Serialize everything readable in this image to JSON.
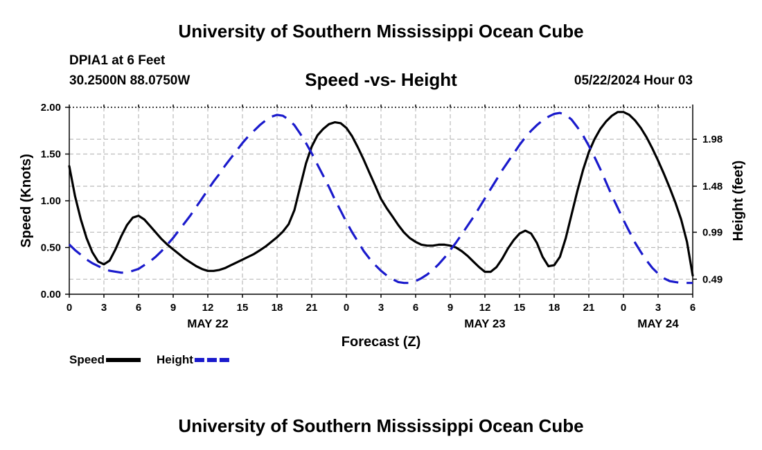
{
  "header": {
    "title": "University of Southern Mississippi Ocean Cube",
    "station": "DPIA1 at 6 Feet",
    "coords": "30.2500N  88.0750W",
    "subtitle": "Speed -vs- Height",
    "datetime": "05/22/2024 Hour 03"
  },
  "footer": {
    "title": "University of Southern Mississippi Ocean Cube"
  },
  "chart_data": {
    "type": "line",
    "title": "Speed -vs- Height",
    "xlabel": "Forecast (Z)",
    "ylabel": "Speed (Knots)",
    "y2label": "Height (feet)",
    "xlim": [
      0,
      54
    ],
    "ylim": [
      0,
      2.0
    ],
    "y2lim": [
      0.33,
      2.32
    ],
    "x_ticks": [
      0,
      3,
      6,
      9,
      12,
      15,
      18,
      21,
      24,
      27,
      30,
      33,
      36,
      39,
      42,
      45,
      48,
      51,
      54
    ],
    "x_tick_labels": [
      "0",
      "3",
      "6",
      "9",
      "12",
      "15",
      "18",
      "21",
      "0",
      "3",
      "6",
      "9",
      "12",
      "15",
      "18",
      "21",
      "0",
      "3",
      "6"
    ],
    "date_labels": [
      {
        "x": 12,
        "label": "MAY 22"
      },
      {
        "x": 36,
        "label": "MAY 23"
      },
      {
        "x": 51,
        "label": "MAY 24"
      }
    ],
    "y_ticks": [
      0,
      0.5,
      1.0,
      1.5,
      2.0
    ],
    "y_tick_labels": [
      "0.00",
      "0.50",
      "1.00",
      "1.50",
      "2.00"
    ],
    "y2_ticks": [
      0.49,
      0.99,
      1.48,
      1.98
    ],
    "y2_tick_labels": [
      "0.49",
      "0.99",
      "1.48",
      "1.98"
    ],
    "grid": true,
    "legend": [
      {
        "name": "Speed",
        "color": "#000000",
        "style": "solid"
      },
      {
        "name": "Height",
        "color": "#1a1acc",
        "style": "dashed"
      }
    ],
    "series": [
      {
        "name": "Speed",
        "axis": "left",
        "color": "#000000",
        "style": "solid",
        "x": [
          0,
          0.5,
          1,
          1.5,
          2,
          2.5,
          3,
          3.5,
          4,
          4.5,
          5,
          5.5,
          6,
          6.5,
          7,
          7.5,
          8,
          8.5,
          9,
          9.5,
          10,
          10.5,
          11,
          11.5,
          12,
          12.5,
          13,
          13.5,
          14,
          14.5,
          15,
          15.5,
          16,
          16.5,
          17,
          17.5,
          18,
          18.5,
          19,
          19.5,
          20,
          20.5,
          21,
          21.5,
          22,
          22.5,
          23,
          23.5,
          24,
          24.5,
          25,
          25.5,
          26,
          26.5,
          27,
          27.5,
          28,
          28.5,
          29,
          29.5,
          30,
          30.5,
          31,
          31.5,
          32,
          32.5,
          33,
          33.5,
          34,
          34.5,
          35,
          35.5,
          36,
          36.5,
          37,
          37.5,
          38,
          38.5,
          39,
          39.5,
          40,
          40.5,
          41,
          41.5,
          42,
          42.5,
          43,
          43.5,
          44,
          44.5,
          45,
          45.5,
          46,
          46.5,
          47,
          47.5,
          48,
          48.5,
          49,
          49.5,
          50,
          50.5,
          51,
          51.5,
          52,
          52.5,
          53,
          53.5,
          54
        ],
        "values": [
          1.37,
          1.05,
          0.8,
          0.6,
          0.45,
          0.35,
          0.32,
          0.36,
          0.48,
          0.62,
          0.74,
          0.82,
          0.84,
          0.8,
          0.73,
          0.66,
          0.59,
          0.53,
          0.48,
          0.43,
          0.38,
          0.34,
          0.3,
          0.27,
          0.25,
          0.25,
          0.26,
          0.28,
          0.31,
          0.34,
          0.37,
          0.4,
          0.43,
          0.47,
          0.51,
          0.56,
          0.61,
          0.67,
          0.75,
          0.9,
          1.15,
          1.4,
          1.58,
          1.7,
          1.77,
          1.82,
          1.84,
          1.83,
          1.78,
          1.69,
          1.57,
          1.44,
          1.3,
          1.16,
          1.02,
          0.92,
          0.83,
          0.74,
          0.66,
          0.6,
          0.56,
          0.53,
          0.52,
          0.52,
          0.53,
          0.53,
          0.52,
          0.5,
          0.46,
          0.41,
          0.35,
          0.29,
          0.24,
          0.24,
          0.29,
          0.38,
          0.49,
          0.58,
          0.65,
          0.68,
          0.65,
          0.55,
          0.4,
          0.3,
          0.31,
          0.4,
          0.6,
          0.85,
          1.1,
          1.33,
          1.52,
          1.66,
          1.77,
          1.85,
          1.91,
          1.95,
          1.95,
          1.92,
          1.86,
          1.78,
          1.68,
          1.56,
          1.43,
          1.29,
          1.14,
          0.98,
          0.8,
          0.56,
          0.2
        ]
      },
      {
        "name": "Height",
        "axis": "right",
        "color": "#1a1acc",
        "style": "dashed",
        "x": [
          0,
          0.5,
          1,
          1.5,
          2,
          2.5,
          3,
          3.5,
          4,
          4.5,
          5,
          5.5,
          6,
          6.5,
          7,
          7.5,
          8,
          8.5,
          9,
          9.5,
          10,
          10.5,
          11,
          11.5,
          12,
          12.5,
          13,
          13.5,
          14,
          14.5,
          15,
          15.5,
          16,
          16.5,
          17,
          17.5,
          18,
          18.5,
          19,
          19.5,
          20,
          20.5,
          21,
          21.5,
          22,
          22.5,
          23,
          23.5,
          24,
          24.5,
          25,
          25.5,
          26,
          26.5,
          27,
          27.5,
          28,
          28.5,
          29,
          29.5,
          30,
          30.5,
          31,
          31.5,
          32,
          32.5,
          33,
          33.5,
          34,
          34.5,
          35,
          35.5,
          36,
          36.5,
          37,
          37.5,
          38,
          38.5,
          39,
          39.5,
          40,
          40.5,
          41,
          41.5,
          42,
          42.5,
          43,
          43.5,
          44,
          44.5,
          45,
          45.5,
          46,
          46.5,
          47,
          47.5,
          48,
          48.5,
          49,
          49.5,
          50,
          50.5,
          51,
          51.5,
          52,
          52.5,
          53,
          53.5,
          54
        ],
        "values": [
          0.86,
          0.8,
          0.75,
          0.7,
          0.66,
          0.63,
          0.6,
          0.58,
          0.57,
          0.56,
          0.56,
          0.58,
          0.6,
          0.64,
          0.68,
          0.73,
          0.79,
          0.86,
          0.93,
          1.01,
          1.09,
          1.17,
          1.26,
          1.35,
          1.44,
          1.53,
          1.61,
          1.7,
          1.78,
          1.86,
          1.94,
          2.01,
          2.07,
          2.13,
          2.18,
          2.22,
          2.24,
          2.23,
          2.19,
          2.13,
          2.04,
          1.94,
          1.83,
          1.71,
          1.59,
          1.47,
          1.34,
          1.22,
          1.1,
          0.99,
          0.89,
          0.79,
          0.71,
          0.64,
          0.58,
          0.53,
          0.49,
          0.46,
          0.45,
          0.45,
          0.47,
          0.5,
          0.54,
          0.59,
          0.65,
          0.72,
          0.8,
          0.88,
          0.97,
          1.06,
          1.15,
          1.25,
          1.35,
          1.45,
          1.55,
          1.65,
          1.74,
          1.83,
          1.92,
          2.0,
          2.07,
          2.13,
          2.18,
          2.22,
          2.25,
          2.26,
          2.24,
          2.19,
          2.11,
          2.02,
          1.91,
          1.79,
          1.66,
          1.52,
          1.38,
          1.25,
          1.12,
          1.0,
          0.88,
          0.78,
          0.69,
          0.61,
          0.55,
          0.5,
          0.47,
          0.46,
          0.45,
          0.45,
          0.45
        ]
      }
    ]
  }
}
